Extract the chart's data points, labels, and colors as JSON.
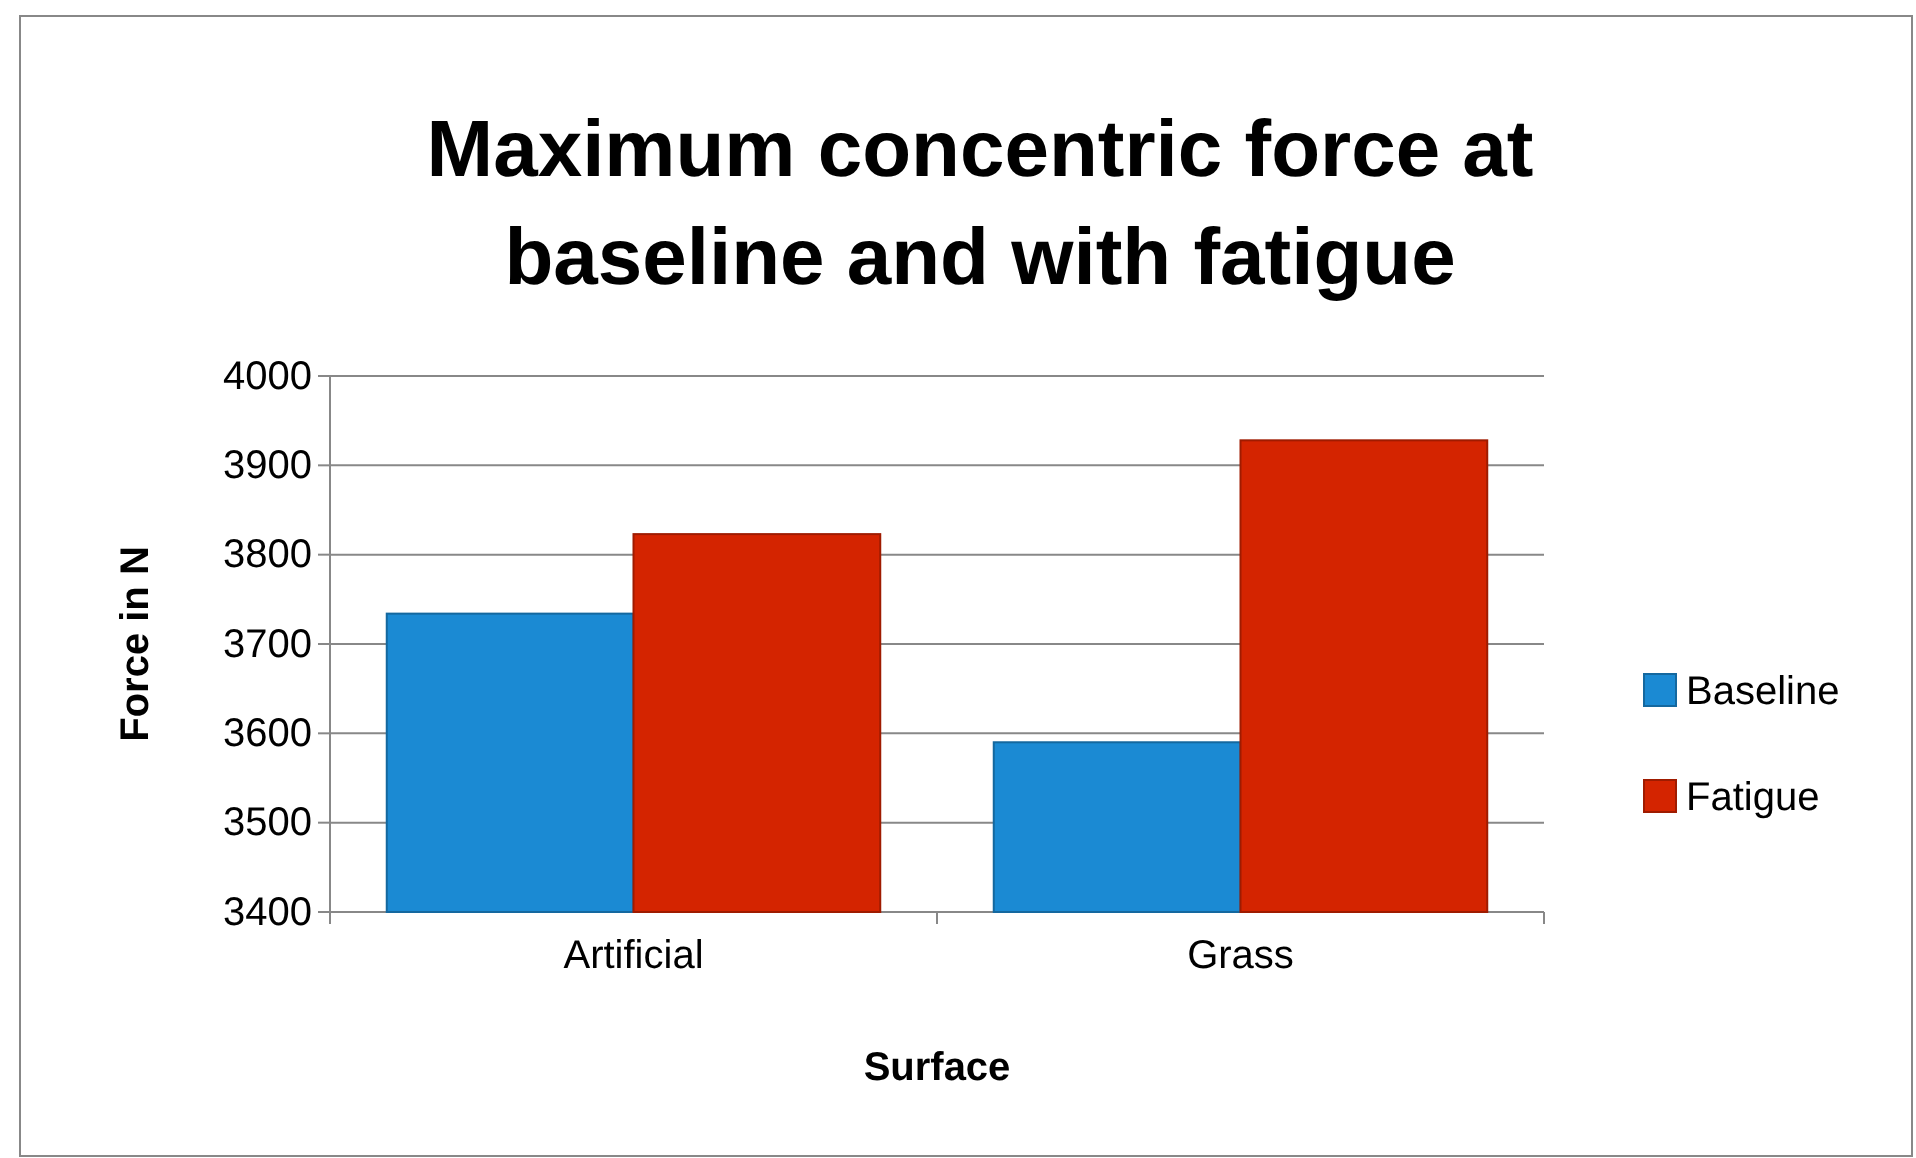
{
  "chart_data": {
    "type": "bar",
    "title": "Maximum concentric force at baseline and with fatigue",
    "xlabel": "Surface",
    "ylabel": "Force in N",
    "categories": [
      "Artificial",
      "Grass"
    ],
    "series": [
      {
        "name": "Baseline",
        "color": "#1b8ad3",
        "values": [
          3734,
          3590
        ]
      },
      {
        "name": "Fatigue",
        "color": "#d42400",
        "values": [
          3823,
          3928
        ]
      }
    ],
    "ylim": [
      3400,
      4000
    ],
    "yticks": [
      3400,
      3500,
      3600,
      3700,
      3800,
      3900,
      4000
    ],
    "grid": "y",
    "legend": "right"
  }
}
